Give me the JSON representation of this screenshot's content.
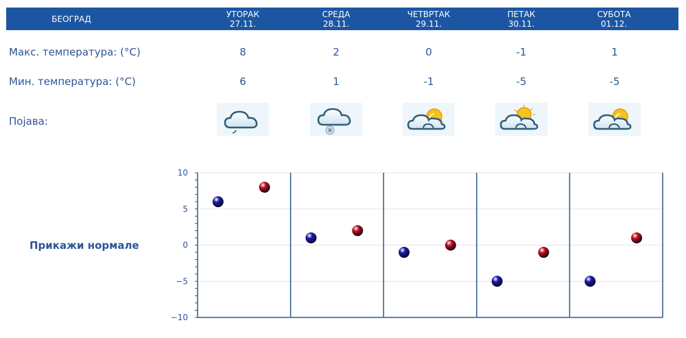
{
  "header": {
    "city": "БЕОГРАД",
    "days": [
      {
        "name": "УТОРАК",
        "date": "27.11."
      },
      {
        "name": "СРЕДА",
        "date": "28.11."
      },
      {
        "name": "ЧЕТВРТАК",
        "date": "29.11."
      },
      {
        "name": "ПЕТАК",
        "date": "30.11."
      },
      {
        "name": "СУБОТА",
        "date": "01.12."
      }
    ]
  },
  "rows": {
    "max_label": "Макс. температура: (°C)",
    "min_label": "Мин. температура: (°C)",
    "phenomenon_label": "Појава:",
    "max_values": [
      "8",
      "2",
      "0",
      "-1",
      "1"
    ],
    "min_values": [
      "6",
      "1",
      "-1",
      "-5",
      "-5"
    ],
    "icons": [
      "cloud-rain-icon",
      "cloud-snow-icon",
      "partly-cloudy-icon",
      "partly-cloudy-icon",
      "partly-cloudy-icon"
    ]
  },
  "show_normals_label": "Прикажи нормале",
  "colors": {
    "header_bg": "#1c56a3",
    "min_point": "#1a1aa8",
    "max_point": "#c0101a",
    "grid": "#2a5a8a"
  },
  "chart_data": {
    "type": "scatter",
    "title": "",
    "xlabel": "",
    "ylabel": "",
    "ylim": [
      -10,
      10
    ],
    "yticks": [
      "10",
      "5",
      "0",
      "−5",
      "−10"
    ],
    "categories": [
      "27.11.",
      "28.11.",
      "29.11.",
      "30.11.",
      "01.12."
    ],
    "series": [
      {
        "name": "",
        "color": "#1a1aa8",
        "values": [
          6,
          1,
          -1,
          -5,
          -5
        ]
      },
      {
        "name": "",
        "color": "#c0101a",
        "values": [
          8,
          2,
          0,
          -1,
          1
        ]
      }
    ],
    "grid": true
  }
}
